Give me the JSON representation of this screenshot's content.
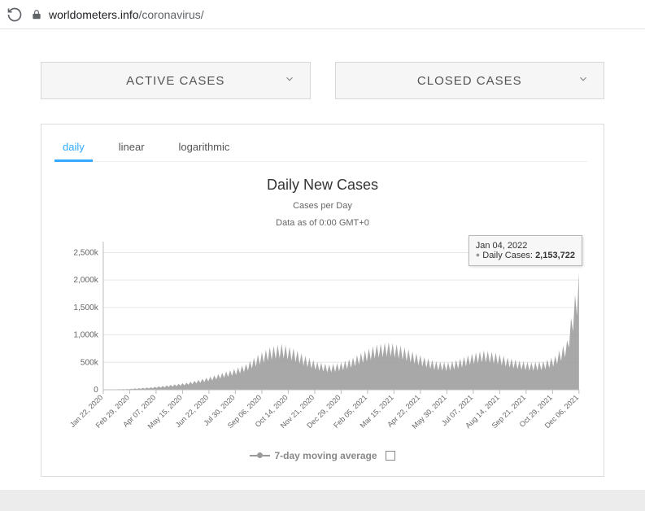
{
  "browser": {
    "url_host": "worldometers.info",
    "url_path": "/coronavirus/"
  },
  "panels": {
    "active": "ACTIVE CASES",
    "closed": "CLOSED CASES"
  },
  "tabs": {
    "daily": "daily",
    "linear": "linear",
    "log": "logarithmic"
  },
  "chart": {
    "type": "area",
    "title": "Daily New Cases",
    "sub1": "Cases per Day",
    "sub2": "Data as of 0:00 GMT+0",
    "series_color": "#999999",
    "grid_color": "#e6e6e6",
    "axis_color": "#bcbcbc",
    "background_color": "#ffffff",
    "ylim": [
      0,
      2700000
    ],
    "yticks": [
      0,
      500000,
      1000000,
      1500000,
      2000000,
      2500000
    ],
    "ytick_labels": [
      "0",
      "500k",
      "1,000k",
      "1,500k",
      "2,000k",
      "2,500k"
    ],
    "xticks": [
      "Jan 22, 2020",
      "Feb 29, 2020",
      "Apr 07, 2020",
      "May 15, 2020",
      "Jun 22, 2020",
      "Jul 30, 2020",
      "Sep 06, 2020",
      "Oct 14, 2020",
      "Nov 21, 2020",
      "Dec 29, 2020",
      "Feb 05, 2021",
      "Mar 15, 2021",
      "Apr 22, 2021",
      "May 30, 2021",
      "Jul 07, 2021",
      "Aug 14, 2021",
      "Sep 21, 2021",
      "Oct 29, 2021",
      "Dec 06, 2021"
    ],
    "tooltip": {
      "date": "Jan 04, 2022",
      "label": "Daily Cases:",
      "value": "2,153,722"
    },
    "legend": "7-day moving average",
    "envelope_high": [
      5,
      8,
      15,
      30,
      45,
      70,
      100,
      130,
      180,
      240,
      310,
      380,
      470,
      640,
      780,
      840,
      760,
      620,
      510,
      460,
      500,
      590,
      720,
      830,
      870,
      810,
      700,
      600,
      520,
      500,
      570,
      660,
      720,
      680,
      590,
      530,
      500,
      520,
      620,
      900,
      2150
    ],
    "envelope_low": [
      0,
      2,
      6,
      15,
      25,
      40,
      60,
      85,
      120,
      160,
      210,
      260,
      330,
      440,
      540,
      580,
      520,
      420,
      350,
      310,
      340,
      410,
      500,
      580,
      610,
      560,
      480,
      410,
      350,
      340,
      390,
      460,
      500,
      470,
      410,
      370,
      340,
      360,
      430,
      620,
      1500
    ]
  }
}
